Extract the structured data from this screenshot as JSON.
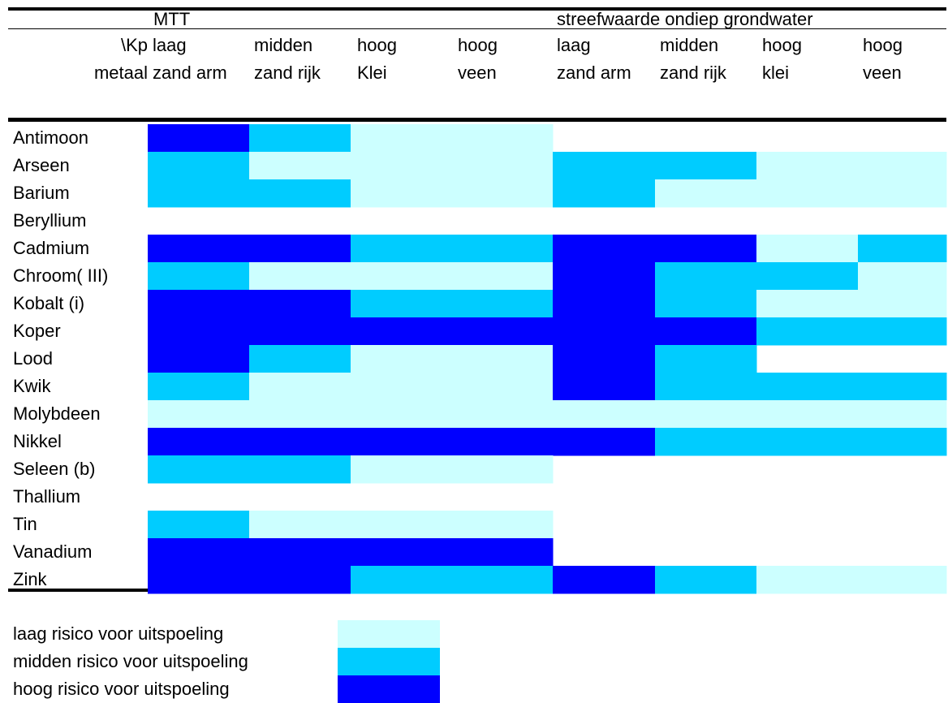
{
  "chart_data": {
    "type": "heatmap",
    "row_header": "\\Kp\nmetaal",
    "groups": [
      "MTT",
      "streefwaarde ondiep grondwater"
    ],
    "columns": [
      {
        "group": "MTT",
        "line1": "laag",
        "line2": "zand arm"
      },
      {
        "group": "MTT",
        "line1": "midden",
        "line2": "zand rijk"
      },
      {
        "group": "MTT",
        "line1": "hoog",
        "line2": "Klei"
      },
      {
        "group": "MTT",
        "line1": "hoog",
        "line2": "veen"
      },
      {
        "group": "streefwaarde ondiep grondwater",
        "line1": "laag",
        "line2": "zand arm"
      },
      {
        "group": "streefwaarde ondiep grondwater",
        "line1": "midden",
        "line2": "zand rijk"
      },
      {
        "group": "streefwaarde ondiep grondwater",
        "line1": "hoog",
        "line2": "klei"
      },
      {
        "group": "streefwaarde ondiep grondwater",
        "line1": "hoog",
        "line2": "veen"
      }
    ],
    "rows": [
      "Antimoon",
      "Arseen",
      "Barium",
      "Beryllium",
      "Cadmium",
      "Chroom( III)",
      "Kobalt (i)",
      "Koper",
      "Lood",
      "Kwik",
      "Molybdeen",
      "Nikkel",
      "Seleen (b)",
      "Thallium",
      "Tin",
      "Vanadium",
      "Zink"
    ],
    "levels_note": "0 = geen kleur, 1 = laag, 2 = midden, 3 = hoog",
    "values": [
      [
        3,
        2,
        1,
        1,
        0,
        0,
        0,
        0
      ],
      [
        2,
        1,
        1,
        1,
        2,
        2,
        1,
        1
      ],
      [
        2,
        2,
        1,
        1,
        2,
        1,
        1,
        1
      ],
      [
        0,
        0,
        0,
        0,
        0,
        0,
        0,
        0
      ],
      [
        3,
        3,
        2,
        2,
        3,
        3,
        1,
        2
      ],
      [
        2,
        1,
        1,
        1,
        3,
        2,
        2,
        1
      ],
      [
        3,
        3,
        2,
        2,
        3,
        2,
        1,
        1
      ],
      [
        3,
        3,
        3,
        3,
        3,
        3,
        2,
        2
      ],
      [
        3,
        2,
        1,
        1,
        3,
        2,
        0,
        0
      ],
      [
        2,
        1,
        1,
        1,
        3,
        2,
        2,
        2
      ],
      [
        1,
        1,
        1,
        1,
        1,
        1,
        1,
        1
      ],
      [
        3,
        3,
        3,
        3,
        3,
        2,
        2,
        2
      ],
      [
        2,
        2,
        1,
        1,
        0,
        0,
        0,
        0
      ],
      [
        0,
        0,
        0,
        0,
        0,
        0,
        0,
        0
      ],
      [
        2,
        1,
        1,
        1,
        0,
        0,
        0,
        0
      ],
      [
        3,
        3,
        3,
        3,
        0,
        0,
        0,
        0
      ],
      [
        3,
        3,
        2,
        2,
        3,
        2,
        1,
        1
      ]
    ],
    "colors": {
      "1": "#CCFFFF",
      "2": "#00CCFF",
      "3": "#0000FF"
    },
    "legend": [
      {
        "label": "laag risico voor uitspoeling",
        "level": 1
      },
      {
        "label": "midden risico voor uitspoeling",
        "level": 2
      },
      {
        "label": "hoog risico voor uitspoeling",
        "level": 3
      }
    ]
  }
}
